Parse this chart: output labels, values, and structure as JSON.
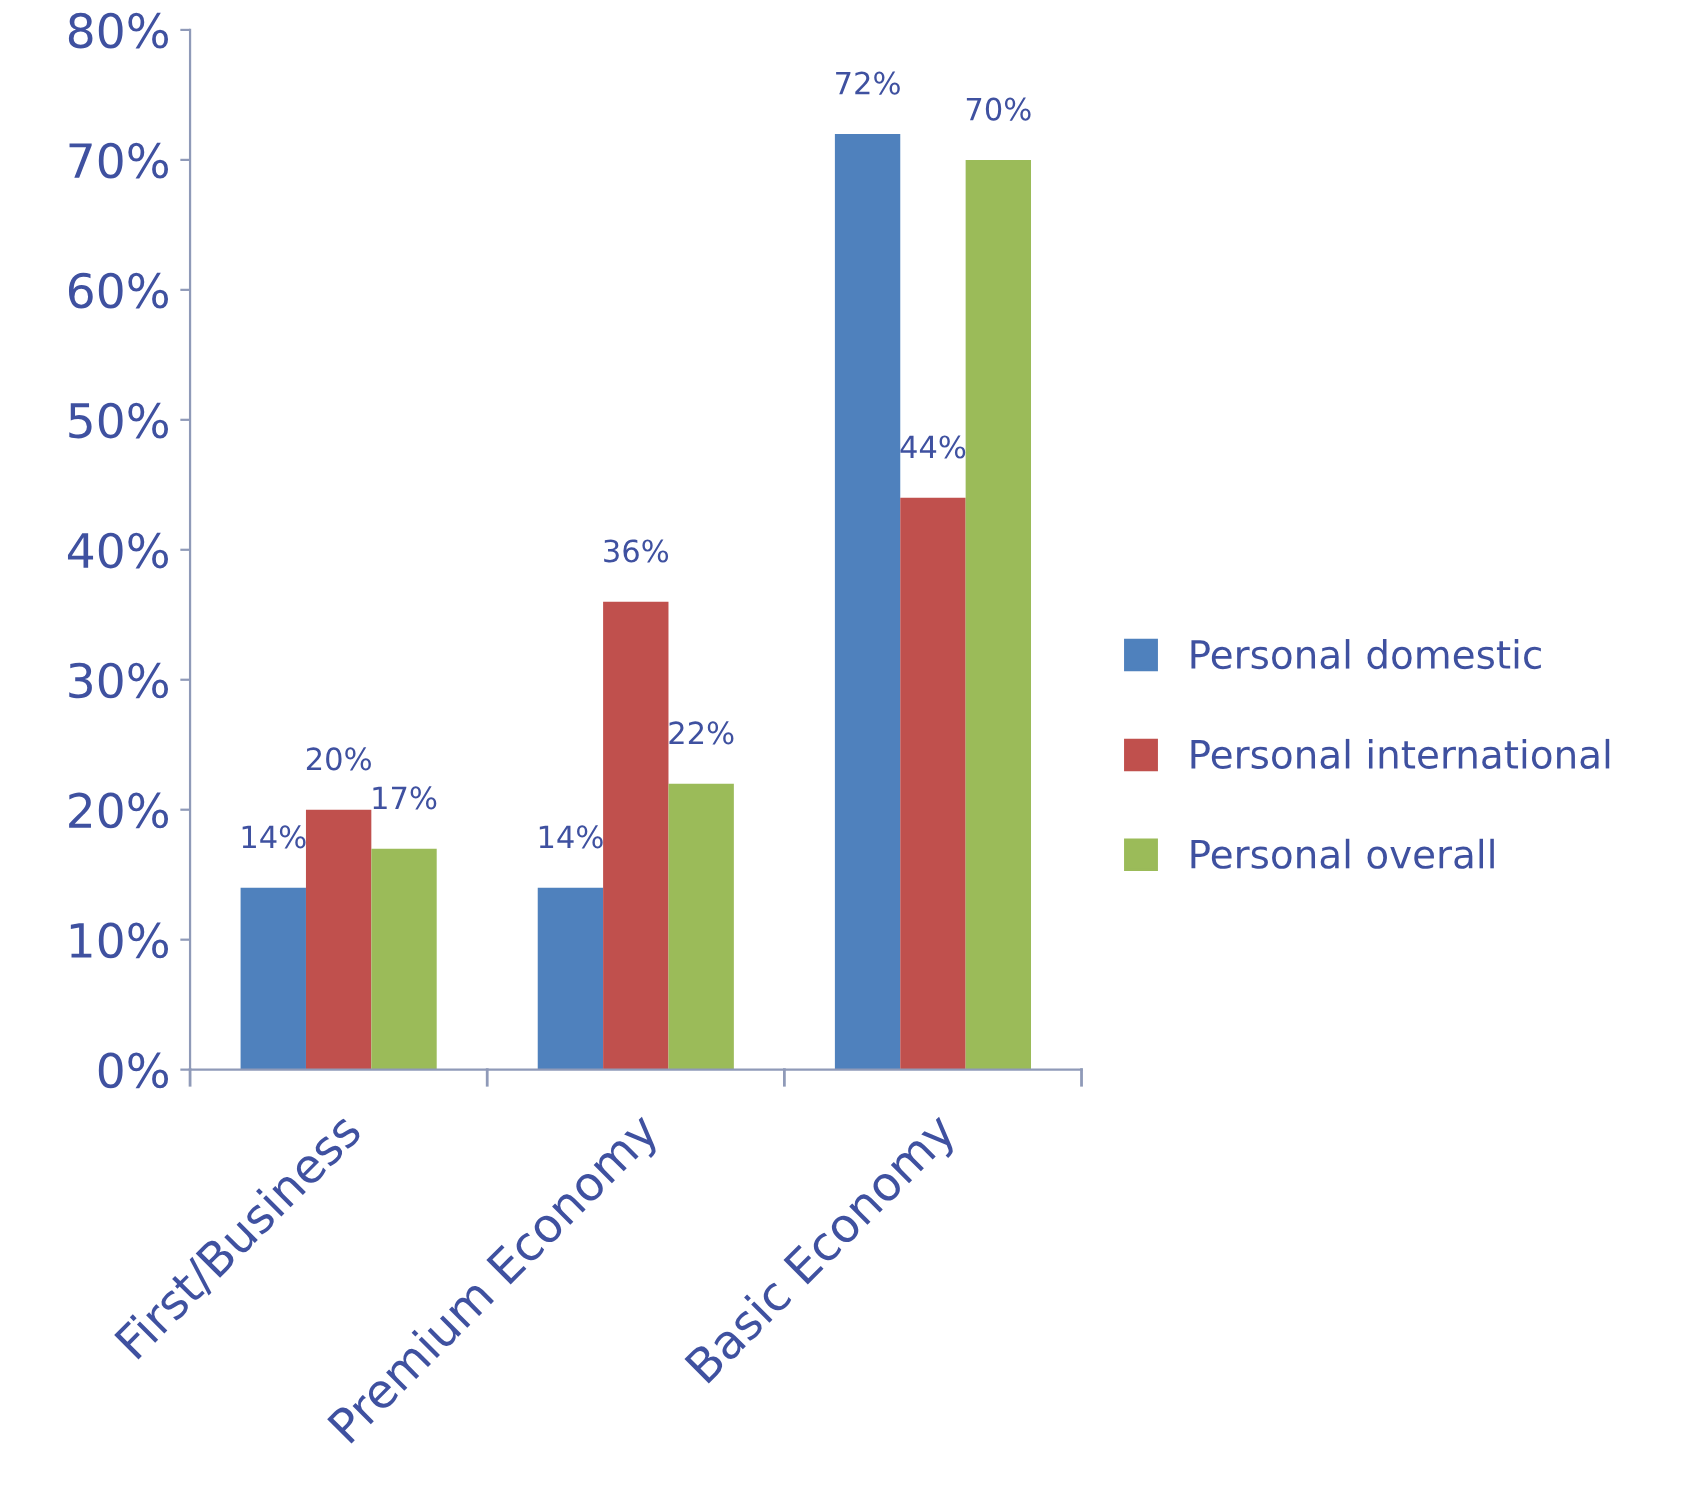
{
  "chart_data": {
    "type": "bar",
    "categories": [
      "First/Business",
      "Premium Economy",
      "Basic Economy"
    ],
    "series": [
      {
        "name": "Personal domestic",
        "color": "#4f81bd",
        "values": [
          14,
          14,
          72
        ],
        "value_labels": [
          "14%",
          "14%",
          "72%"
        ]
      },
      {
        "name": "Personal international",
        "color": "#c0504d",
        "values": [
          20,
          36,
          44
        ],
        "value_labels": [
          "20%",
          "36%",
          "44%"
        ]
      },
      {
        "name": "Personal overall",
        "color": "#9bbb59",
        "values": [
          17,
          22,
          70
        ],
        "value_labels": [
          "17%",
          "22%",
          "70%"
        ]
      }
    ],
    "ylim": [
      0,
      80
    ],
    "yticks": [
      {
        "value": 0,
        "label": "0%"
      },
      {
        "value": 10,
        "label": "10%"
      },
      {
        "value": 20,
        "label": "20%"
      },
      {
        "value": 30,
        "label": "30%"
      },
      {
        "value": 40,
        "label": "40%"
      },
      {
        "value": 50,
        "label": "50%"
      },
      {
        "value": 60,
        "label": "60%"
      },
      {
        "value": 70,
        "label": "70%"
      },
      {
        "value": 80,
        "label": "80%"
      }
    ],
    "grid": false,
    "legend": "right"
  }
}
